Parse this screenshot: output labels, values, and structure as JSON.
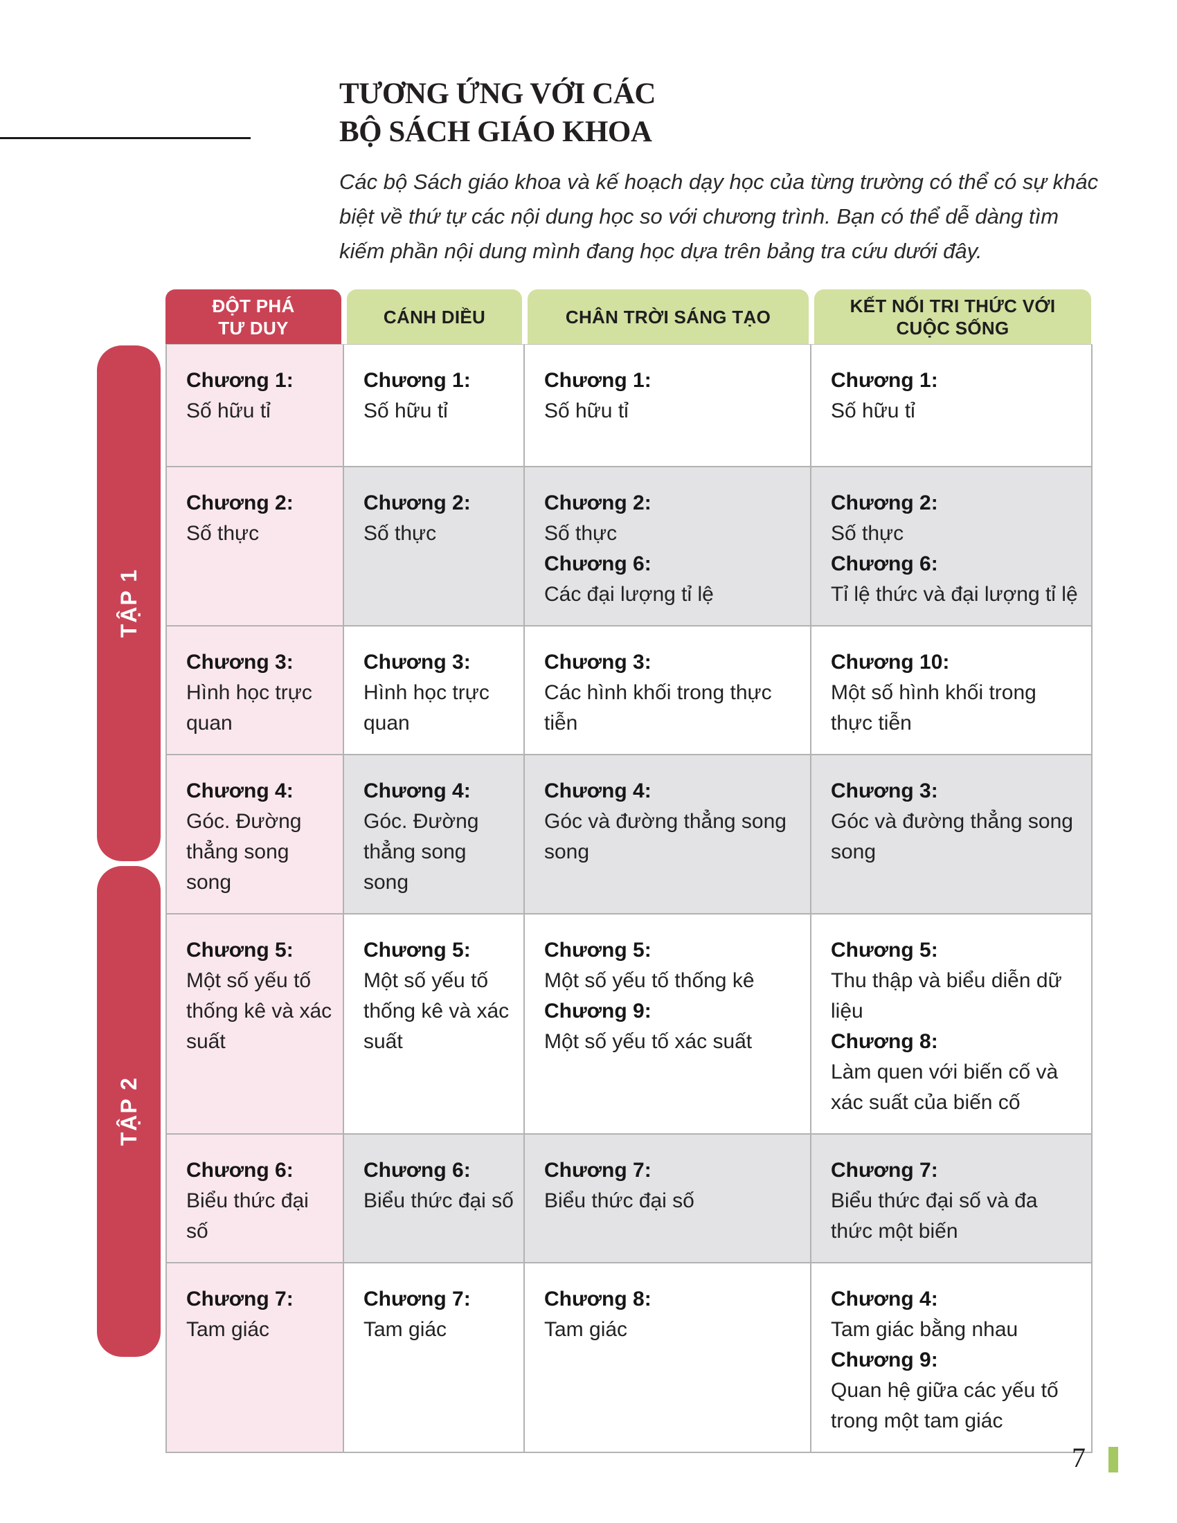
{
  "page": {
    "title": "TƯƠNG ỨNG VỚI CÁC\nBỘ SÁCH GIÁO KHOA",
    "intro": "Các bộ Sách giáo khoa và kế hoạch dạy học của từng trường có thể có sự khác biệt về thứ tự các nội dung học so với chương trình. Bạn có thể dễ dàng tìm kiếm phần nội dung mình đang học dựa trên bảng tra cứu dưới đây.",
    "page_number": "7"
  },
  "colors": {
    "accent_red": "#CA4355",
    "accent_green": "#D2E0A0",
    "pink_column": "#FAE7ED",
    "gray_row": "#E3E3E5",
    "footer_tick_green": "#A6C862"
  },
  "table": {
    "columns": [
      {
        "label": "ĐỘT PHÁ\nTƯ DUY",
        "style": "red"
      },
      {
        "label": "CÁNH DIỀU",
        "style": "green"
      },
      {
        "label": "CHÂN TRỜI SÁNG TẠO",
        "style": "green"
      },
      {
        "label": "KẾT NỐI TRI THỨC VỚI CUỘC SỐNG",
        "style": "green"
      }
    ],
    "volumes": [
      {
        "label": "TẬP 1",
        "rows": [
          {
            "cells": [
              [
                {
                  "chapter": "Chương 1:",
                  "title": "Số hữu tỉ"
                }
              ],
              [
                {
                  "chapter": "Chương 1:",
                  "title": "Số hữu tỉ"
                }
              ],
              [
                {
                  "chapter": "Chương 1:",
                  "title": "Số hữu tỉ"
                }
              ],
              [
                {
                  "chapter": "Chương 1:",
                  "title": "Số hữu tỉ"
                }
              ]
            ]
          },
          {
            "cells": [
              [
                {
                  "chapter": "Chương 2:",
                  "title": "Số thực"
                }
              ],
              [
                {
                  "chapter": "Chương 2:",
                  "title": "Số thực"
                }
              ],
              [
                {
                  "chapter": "Chương 2:",
                  "title": "Số thực"
                },
                {
                  "chapter": "Chương 6:",
                  "title": "Các đại lượng tỉ lệ"
                }
              ],
              [
                {
                  "chapter": "Chương 2:",
                  "title": "Số thực"
                },
                {
                  "chapter": "Chương 6:",
                  "title": "Tỉ lệ thức và đại lượng tỉ lệ"
                }
              ]
            ]
          },
          {
            "cells": [
              [
                {
                  "chapter": "Chương 3:",
                  "title": "Hình học trực quan"
                }
              ],
              [
                {
                  "chapter": "Chương 3:",
                  "title": "Hình học trực quan"
                }
              ],
              [
                {
                  "chapter": "Chương 3:",
                  "title": "Các hình khối trong thực tiễn"
                }
              ],
              [
                {
                  "chapter": "Chương 10:",
                  "title": "Một số hình khối trong thực tiễn"
                }
              ]
            ]
          },
          {
            "cells": [
              [
                {
                  "chapter": "Chương 4:",
                  "title": "Góc. Đường thẳng song song"
                }
              ],
              [
                {
                  "chapter": "Chương 4:",
                  "title": "Góc. Đường thẳng song song"
                }
              ],
              [
                {
                  "chapter": "Chương 4:",
                  "title": "Góc và đường thẳng song song"
                }
              ],
              [
                {
                  "chapter": "Chương 3:",
                  "title": "Góc và đường thẳng song song"
                }
              ]
            ]
          }
        ]
      },
      {
        "label": "TẬP 2",
        "rows": [
          {
            "cells": [
              [
                {
                  "chapter": "Chương 5:",
                  "title": "Một số yếu tố thống kê và xác suất"
                }
              ],
              [
                {
                  "chapter": "Chương 5:",
                  "title": "Một số yếu tố thống kê và xác suất"
                }
              ],
              [
                {
                  "chapter": "Chương 5:",
                  "title": "Một số yếu tố thống kê"
                },
                {
                  "chapter": "Chương 9:",
                  "title": "Một số yếu tố xác suất"
                }
              ],
              [
                {
                  "chapter": "Chương 5:",
                  "title": "Thu thập và biểu diễn dữ liệu"
                },
                {
                  "chapter": "Chương 8:",
                  "title": "Làm quen với biến cố và xác suất của biến cố"
                }
              ]
            ]
          },
          {
            "cells": [
              [
                {
                  "chapter": "Chương 6:",
                  "title": "Biểu thức đại số"
                }
              ],
              [
                {
                  "chapter": "Chương 6:",
                  "title": "Biểu thức đại số"
                }
              ],
              [
                {
                  "chapter": "Chương 7:",
                  "title": "Biểu thức đại số"
                }
              ],
              [
                {
                  "chapter": "Chương 7:",
                  "title": "Biểu thức đại số và đa thức một biến"
                }
              ]
            ]
          },
          {
            "cells": [
              [
                {
                  "chapter": "Chương 7:",
                  "title": "Tam giác"
                }
              ],
              [
                {
                  "chapter": "Chương 7:",
                  "title": "Tam giác"
                }
              ],
              [
                {
                  "chapter": "Chương 8:",
                  "title": "Tam giác"
                }
              ],
              [
                {
                  "chapter": "Chương 4:",
                  "title": "Tam giác bằng nhau"
                },
                {
                  "chapter": "Chương 9:",
                  "title": "Quan hệ giữa các yếu tố trong một tam giác"
                }
              ]
            ]
          }
        ]
      }
    ]
  }
}
